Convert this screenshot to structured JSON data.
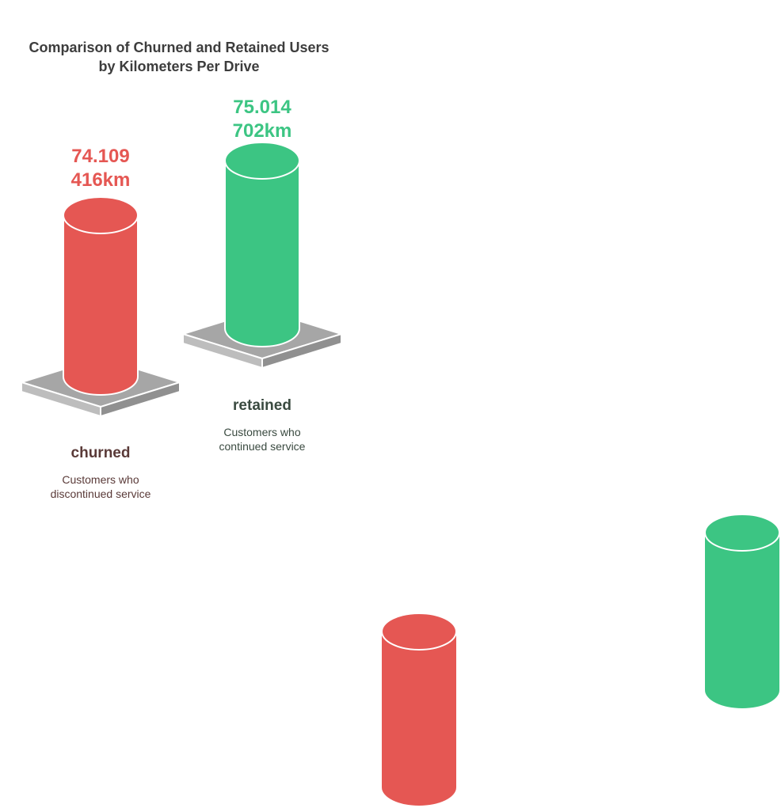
{
  "chart_data": {
    "type": "bar",
    "title_lines": [
      "Comparison of Churned and Retained Users",
      "by Kilometers Per Drive"
    ],
    "categories": [
      "churned",
      "retained"
    ],
    "values": [
      74109.416,
      75014.702
    ],
    "unit": "km",
    "value_labels": [
      [
        "74.109",
        "416km"
      ],
      [
        "75.014",
        "702km"
      ]
    ],
    "descriptions": [
      [
        "Customers who",
        "discontinued service"
      ],
      [
        "Customers who",
        "continued service"
      ]
    ],
    "colors": {
      "churned": "#e55753",
      "retained": "#3cc583",
      "base": "#a6a6a6",
      "churned_text": "#5a3a38",
      "retained_text": "#3a4a40"
    }
  }
}
